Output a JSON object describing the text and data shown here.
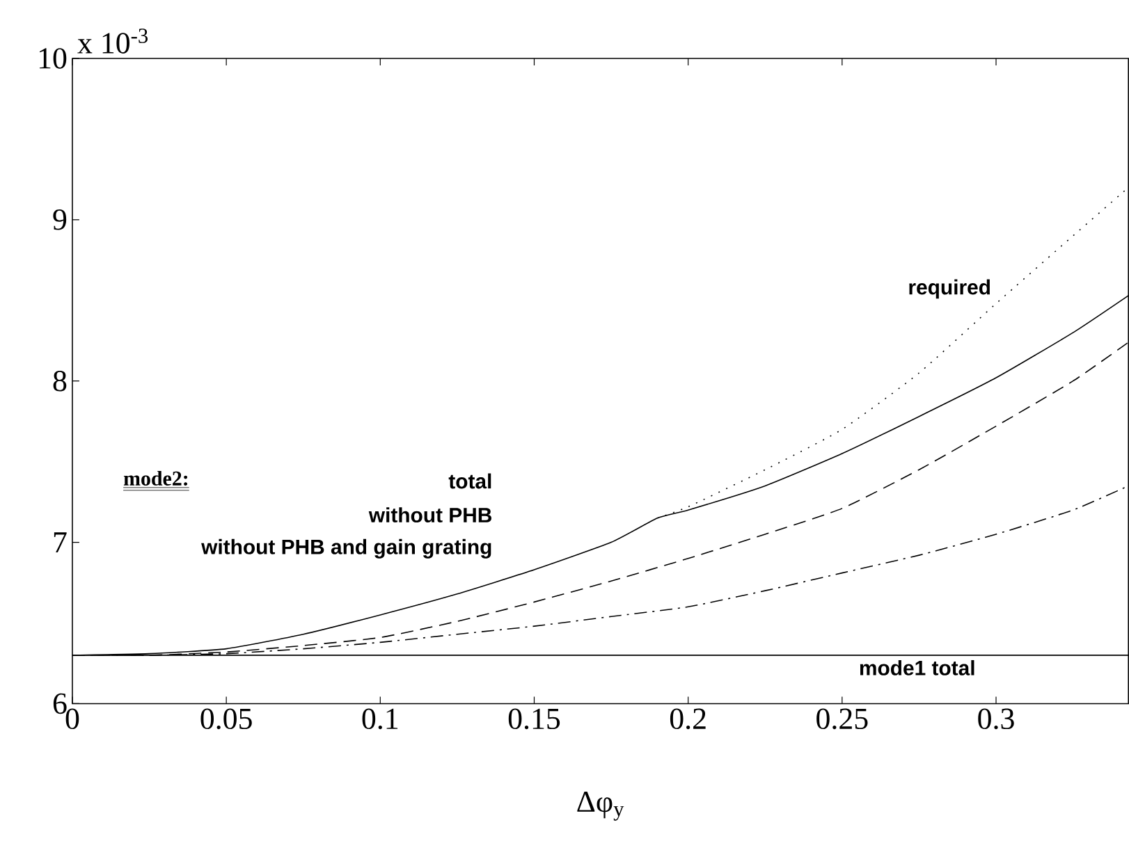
{
  "chart_data": {
    "type": "line",
    "xlabel": "Δφ$_{y}$",
    "xlim": [
      0,
      0.343
    ],
    "ylim": [
      6,
      10
    ],
    "xticks": [
      0,
      0.05,
      0.1,
      0.15,
      0.2,
      0.25,
      0.3
    ],
    "yticks": [
      6,
      7,
      8,
      9,
      10
    ],
    "series": [
      {
        "color": "#000000",
        "line_style": "solid",
        "x": [
          0,
          0.025,
          0.05,
          0.075,
          0.1,
          0.125,
          0.15,
          0.175,
          0.19,
          0.2,
          0.225,
          0.25,
          0.275,
          0.3,
          0.325,
          0.343
        ],
        "values": [
          6.3,
          6.31,
          6.34,
          6.43,
          6.55,
          6.68,
          6.83,
          7.0,
          7.15,
          7.2,
          7.35,
          7.55,
          7.78,
          8.02,
          8.3,
          8.53
        ]
      },
      {
        "name": "required",
        "color": "#000000",
        "line_style": "dotted",
        "x": [
          0.19,
          0.2,
          0.225,
          0.25,
          0.275,
          0.3,
          0.325,
          0.343
        ],
        "values": [
          7.15,
          7.22,
          7.45,
          7.7,
          8.05,
          8.48,
          8.9,
          9.2
        ]
      },
      {
        "color": "#000000",
        "line_style": "dashed",
        "x": [
          0,
          0.025,
          0.05,
          0.075,
          0.1,
          0.125,
          0.15,
          0.175,
          0.2,
          0.225,
          0.25,
          0.275,
          0.3,
          0.325,
          0.343
        ],
        "values": [
          6.3,
          6.3,
          6.32,
          6.36,
          6.41,
          6.51,
          6.63,
          6.76,
          6.9,
          7.05,
          7.21,
          7.45,
          7.72,
          8.0,
          8.24
        ]
      },
      {
        "color": "#000000",
        "line_style": "dashdot",
        "x": [
          0,
          0.025,
          0.05,
          0.075,
          0.1,
          0.125,
          0.15,
          0.175,
          0.2,
          0.225,
          0.25,
          0.275,
          0.3,
          0.325,
          0.343
        ],
        "values": [
          6.3,
          6.3,
          6.31,
          6.34,
          6.38,
          6.43,
          6.48,
          6.54,
          6.6,
          6.7,
          6.81,
          6.92,
          7.05,
          7.2,
          7.35
        ]
      },
      {
        "name": "mode1 total",
        "color": "#000000",
        "line_style": "solid",
        "x": [
          0,
          0.343
        ],
        "values": [
          6.3,
          6.3
        ]
      }
    ],
    "annotations": [
      "x 10$^{-3}$",
      "mode2:",
      "total",
      "without PHB",
      "without PHB and gain grating"
    ],
    "grid": false
  }
}
